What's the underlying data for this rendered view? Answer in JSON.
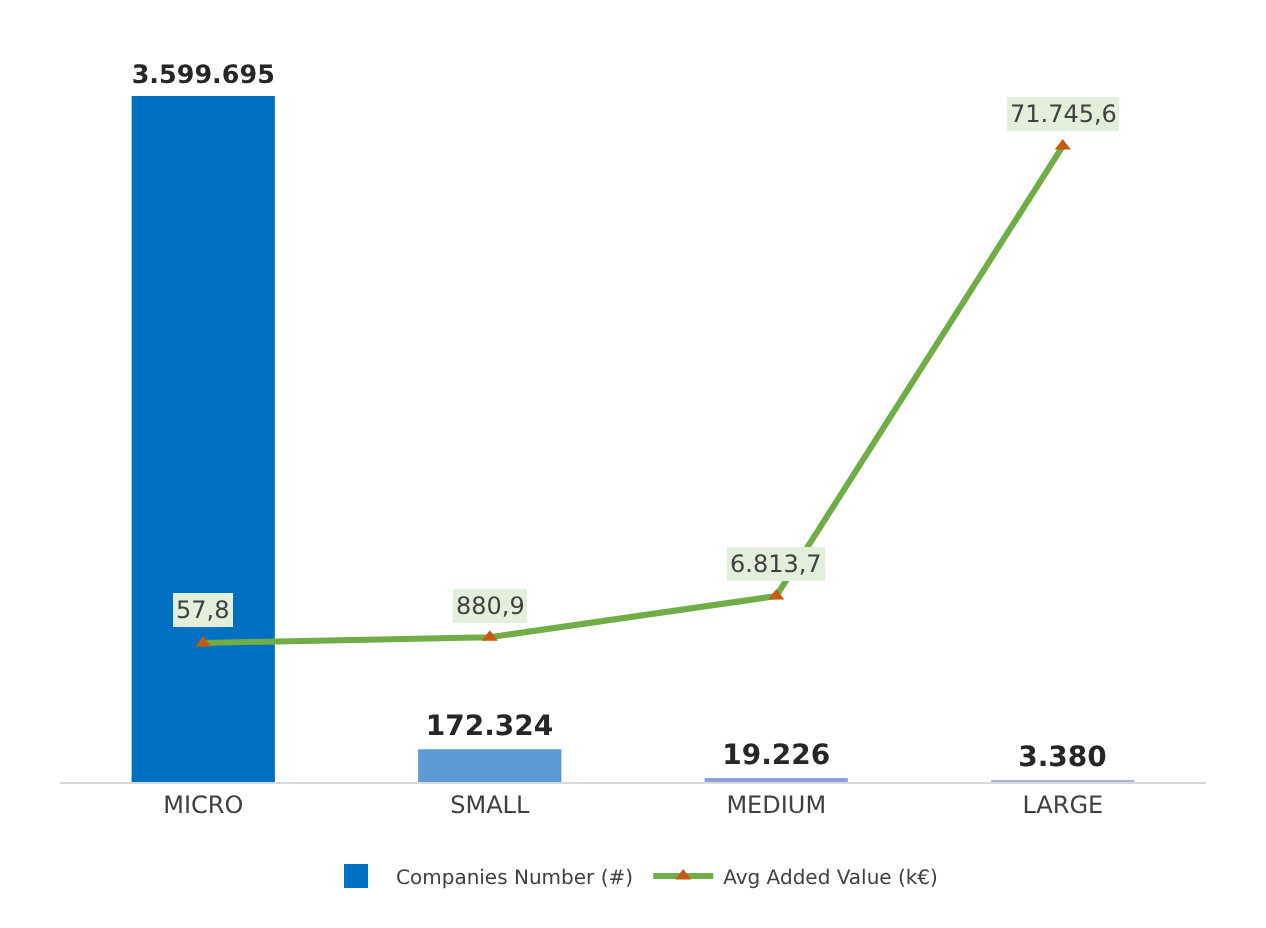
{
  "chart_data": {
    "type": "bar",
    "categories": [
      "MICRO",
      "SMALL",
      "MEDIUM",
      "LARGE"
    ],
    "series": [
      {
        "name": "Companies Number (#)",
        "colors": [
          "#0070c0",
          "#5b9bd5",
          "#8e9fdc",
          "#a9b4e3"
        ],
        "values": [
          3599695,
          172324,
          19226,
          3380
        ],
        "value_labels": [
          "3.599.695",
          "172.324",
          "19.226",
          "3.380"
        ]
      },
      {
        "name": "Avg Added Value (k€)",
        "type": "line",
        "axis": "y2",
        "color": "#70ad47",
        "marker": "triangle",
        "values": [
          57.8,
          880.9,
          6813.7,
          71745.6
        ],
        "value_labels": [
          "57,8",
          "880,9",
          "6.813,7",
          "71.745,6"
        ]
      }
    ],
    "legend": "bottom",
    "grid": false,
    "tick_labels": "x"
  }
}
